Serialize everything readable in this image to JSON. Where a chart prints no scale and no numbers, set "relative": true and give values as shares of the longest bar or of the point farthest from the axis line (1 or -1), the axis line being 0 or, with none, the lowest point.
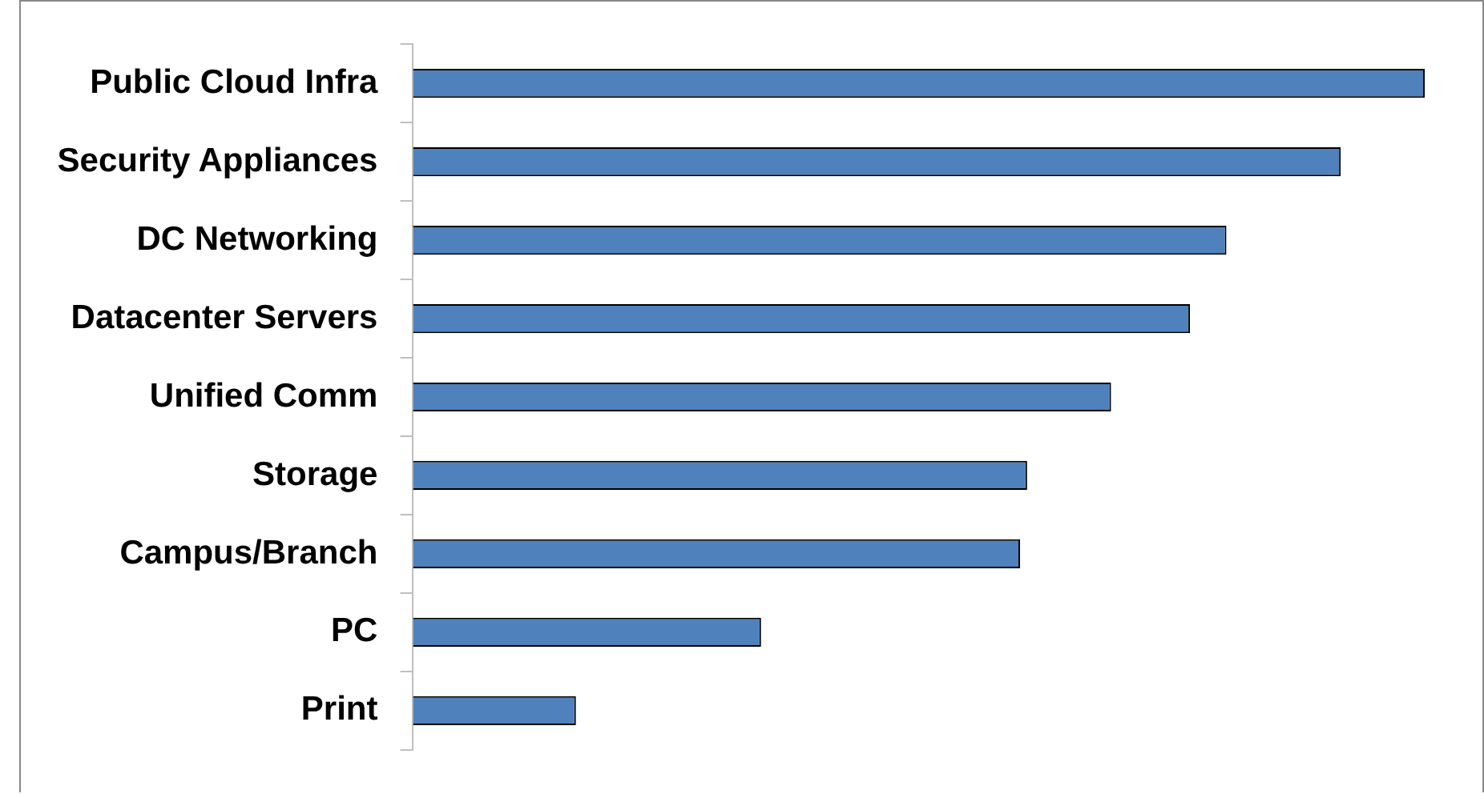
{
  "chart_data": {
    "type": "bar",
    "orientation": "horizontal",
    "relative": true,
    "categories": [
      "Public Cloud Infra",
      "Security Appliances",
      "DC Networking",
      "Datacenter Servers",
      "Unified Comm",
      "Storage",
      "Campus/Branch",
      "PC",
      "Print"
    ],
    "values": [
      1,
      0.917,
      0.804,
      0.768,
      0.69,
      0.607,
      0.6,
      0.344,
      0.161
    ],
    "color": "#4f81bd"
  }
}
